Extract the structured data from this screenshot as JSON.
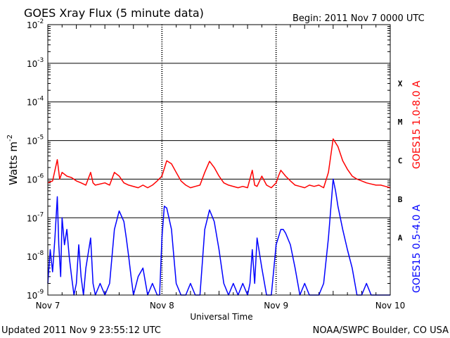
{
  "colors": {
    "long_channel": "#ff0000",
    "short_channel": "#0000ff",
    "axes": "#000000",
    "background": "#ffffff"
  },
  "chart_data": {
    "type": "line",
    "title": "GOES Xray Flux (5 minute data)",
    "begin": "Begin:  2011 Nov 7 0000 UTC",
    "xlabel": "Universal Time",
    "ylabel_main": "Watts m",
    "ylabel_sup": "-2",
    "y_scale": "log",
    "ylim": [
      1e-09,
      0.01
    ],
    "xlim_hours": [
      0,
      72
    ],
    "grid": "horizontal at each decade",
    "x_ticks": [
      {
        "label": "Nov 7",
        "hour": 0
      },
      {
        "label": "Nov 8",
        "hour": 24
      },
      {
        "label": "Nov 9",
        "hour": 48
      },
      {
        "label": "Nov 10",
        "hour": 72
      }
    ],
    "y_ticks": [
      {
        "base": "10",
        "exp": "-2"
      },
      {
        "base": "10",
        "exp": "-3"
      },
      {
        "base": "10",
        "exp": "-4"
      },
      {
        "base": "10",
        "exp": "-5"
      },
      {
        "base": "10",
        "exp": "-6"
      },
      {
        "base": "10",
        "exp": "-7"
      },
      {
        "base": "10",
        "exp": "-8"
      },
      {
        "base": "10",
        "exp": "-9"
      }
    ],
    "flare_classes": [
      "X",
      "M",
      "C",
      "B",
      "A"
    ],
    "series": [
      {
        "name": "GOES15 1.0-8.0 A",
        "color": "#ff0000",
        "points": [
          [
            0,
            8e-07
          ],
          [
            1,
            9e-07
          ],
          [
            2,
            3.2e-06
          ],
          [
            2.5,
            1e-06
          ],
          [
            3,
            1.5e-06
          ],
          [
            4,
            1.2e-06
          ],
          [
            5,
            1.1e-06
          ],
          [
            6,
            9e-07
          ],
          [
            7,
            8e-07
          ],
          [
            8,
            7e-07
          ],
          [
            9,
            1.5e-06
          ],
          [
            9.5,
            8e-07
          ],
          [
            10,
            7e-07
          ],
          [
            12,
            8e-07
          ],
          [
            13,
            7e-07
          ],
          [
            14,
            1.5e-06
          ],
          [
            15,
            1.2e-06
          ],
          [
            16,
            8e-07
          ],
          [
            17,
            7e-07
          ],
          [
            19,
            6e-07
          ],
          [
            20,
            7e-07
          ],
          [
            21,
            6e-07
          ],
          [
            22,
            7e-07
          ],
          [
            23,
            9e-07
          ],
          [
            24,
            1.2e-06
          ],
          [
            25,
            3e-06
          ],
          [
            26,
            2.5e-06
          ],
          [
            27,
            1.5e-06
          ],
          [
            28,
            9e-07
          ],
          [
            29,
            7e-07
          ],
          [
            30,
            6e-07
          ],
          [
            31,
            6.5e-07
          ],
          [
            32,
            7e-07
          ],
          [
            33,
            1.5e-06
          ],
          [
            34,
            2.9e-06
          ],
          [
            35,
            2e-06
          ],
          [
            36,
            1.2e-06
          ],
          [
            37,
            8e-07
          ],
          [
            38,
            7e-07
          ],
          [
            40,
            6e-07
          ],
          [
            41,
            6.5e-07
          ],
          [
            42,
            6e-07
          ],
          [
            43,
            1.7e-06
          ],
          [
            43.5,
            7e-07
          ],
          [
            44,
            6.5e-07
          ],
          [
            45,
            1.2e-06
          ],
          [
            46,
            7e-07
          ],
          [
            47,
            6e-07
          ],
          [
            48,
            8e-07
          ],
          [
            48.5,
            1.2e-06
          ],
          [
            49,
            1.7e-06
          ],
          [
            50,
            1.2e-06
          ],
          [
            51,
            9e-07
          ],
          [
            52,
            7e-07
          ],
          [
            53,
            6.5e-07
          ],
          [
            54,
            6e-07
          ],
          [
            55,
            7e-07
          ],
          [
            56,
            6.5e-07
          ],
          [
            57,
            7e-07
          ],
          [
            58,
            6e-07
          ],
          [
            59,
            1.5e-06
          ],
          [
            60,
            1.1e-05
          ],
          [
            61,
            7e-06
          ],
          [
            62,
            3e-06
          ],
          [
            63,
            1.8e-06
          ],
          [
            64,
            1.2e-06
          ],
          [
            65,
            1e-06
          ],
          [
            66,
            9e-07
          ],
          [
            67,
            8e-07
          ],
          [
            68,
            7.5e-07
          ],
          [
            69,
            7e-07
          ],
          [
            70,
            7e-07
          ],
          [
            71,
            6.5e-07
          ],
          [
            72,
            6e-07
          ]
        ]
      },
      {
        "name": "GOES15 0.5-4.0 A",
        "color": "#0000ff",
        "points": [
          [
            0,
            2e-09
          ],
          [
            0.5,
            1.5e-08
          ],
          [
            1,
            4e-09
          ],
          [
            1.5,
            3e-08
          ],
          [
            2,
            3.5e-07
          ],
          [
            2.3,
            2e-08
          ],
          [
            2.7,
            3e-09
          ],
          [
            3,
            1e-07
          ],
          [
            3.5,
            2e-08
          ],
          [
            4,
            5e-08
          ],
          [
            4.5,
            1e-08
          ],
          [
            5,
            3e-09
          ],
          [
            5.5,
            1e-09
          ],
          [
            6,
            2e-09
          ],
          [
            6.5,
            2e-08
          ],
          [
            7,
            3e-09
          ],
          [
            7.5,
            1e-09
          ],
          [
            8,
            5e-09
          ],
          [
            9,
            3e-08
          ],
          [
            9.5,
            2e-09
          ],
          [
            10,
            1e-09
          ],
          [
            11,
            2e-09
          ],
          [
            12,
            1e-09
          ],
          [
            13,
            2e-09
          ],
          [
            14,
            5e-08
          ],
          [
            15,
            1.5e-07
          ],
          [
            16,
            8e-08
          ],
          [
            16.5,
            3e-08
          ],
          [
            17,
            1e-08
          ],
          [
            17.5,
            3e-09
          ],
          [
            18,
            1e-09
          ],
          [
            19,
            3e-09
          ],
          [
            20,
            5e-09
          ],
          [
            21,
            1e-09
          ],
          [
            22,
            2e-09
          ],
          [
            23,
            1e-09
          ],
          [
            23.5,
            1e-09
          ],
          [
            24,
            3e-08
          ],
          [
            24.5,
            2e-07
          ],
          [
            25,
            1.8e-07
          ],
          [
            26,
            5e-08
          ],
          [
            26.5,
            1e-08
          ],
          [
            27,
            2e-09
          ],
          [
            28,
            1e-09
          ],
          [
            29,
            1e-09
          ],
          [
            30,
            2e-09
          ],
          [
            31,
            1e-09
          ],
          [
            32,
            1e-09
          ],
          [
            33,
            5e-08
          ],
          [
            34,
            1.6e-07
          ],
          [
            35,
            8e-08
          ],
          [
            36,
            1.5e-08
          ],
          [
            37,
            2e-09
          ],
          [
            38,
            1e-09
          ],
          [
            39,
            2e-09
          ],
          [
            40,
            1e-09
          ],
          [
            41,
            2e-09
          ],
          [
            42,
            1e-09
          ],
          [
            42.5,
            2e-09
          ],
          [
            43,
            1.5e-08
          ],
          [
            43.5,
            2e-09
          ],
          [
            44,
            3e-08
          ],
          [
            45,
            5e-09
          ],
          [
            46,
            1e-09
          ],
          [
            47,
            1e-09
          ],
          [
            48,
            2e-08
          ],
          [
            49,
            5e-08
          ],
          [
            49.5,
            5e-08
          ],
          [
            50,
            4e-08
          ],
          [
            51,
            2e-08
          ],
          [
            52,
            5e-09
          ],
          [
            53,
            1e-09
          ],
          [
            54,
            2e-09
          ],
          [
            55,
            1e-09
          ],
          [
            56,
            1e-09
          ],
          [
            57,
            1e-09
          ],
          [
            58,
            2e-09
          ],
          [
            59,
            3e-08
          ],
          [
            60,
            1e-06
          ],
          [
            60.5,
            5e-07
          ],
          [
            61,
            2e-07
          ],
          [
            62,
            5e-08
          ],
          [
            63,
            1.5e-08
          ],
          [
            64,
            5e-09
          ],
          [
            65,
            1e-09
          ],
          [
            66,
            1e-09
          ],
          [
            67,
            2e-09
          ],
          [
            68,
            1e-09
          ],
          [
            69,
            1e-09
          ],
          [
            70,
            1e-09
          ],
          [
            71,
            1e-09
          ],
          [
            72,
            1e-09
          ]
        ]
      }
    ]
  },
  "footer": {
    "updated": "Updated 2011 Nov  9 23:55:12 UTC",
    "credit": "NOAA/SWPC Boulder, CO USA"
  }
}
